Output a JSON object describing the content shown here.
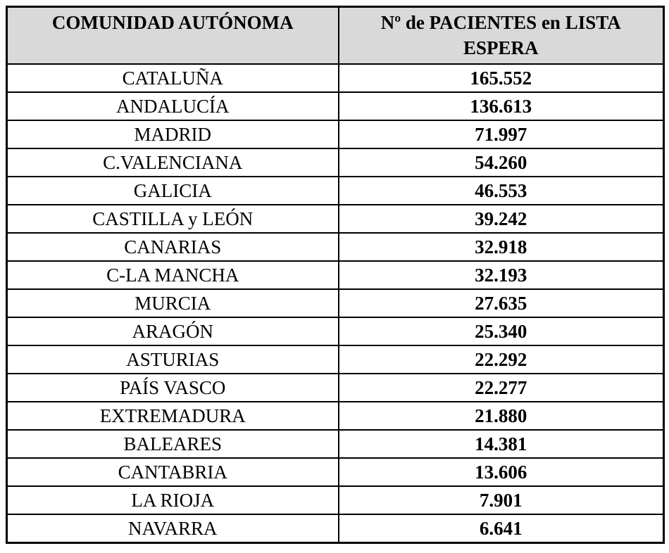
{
  "table": {
    "columns": [
      "COMUNIDAD AUTÓNOMA",
      "Nº de PACIENTES en LISTA ESPERA"
    ],
    "rows": [
      {
        "comunidad": "CATALUÑA",
        "pacientes": "165.552"
      },
      {
        "comunidad": "ANDALUCÍA",
        "pacientes": "136.613"
      },
      {
        "comunidad": "MADRID",
        "pacientes": "71.997"
      },
      {
        "comunidad": "C.VALENCIANA",
        "pacientes": "54.260"
      },
      {
        "comunidad": "GALICIA",
        "pacientes": "46.553"
      },
      {
        "comunidad": "CASTILLA y LEÓN",
        "pacientes": "39.242"
      },
      {
        "comunidad": "CANARIAS",
        "pacientes": "32.918"
      },
      {
        "comunidad": "C-LA MANCHA",
        "pacientes": "32.193"
      },
      {
        "comunidad": "MURCIA",
        "pacientes": "27.635"
      },
      {
        "comunidad": "ARAGÓN",
        "pacientes": "25.340"
      },
      {
        "comunidad": "ASTURIAS",
        "pacientes": "22.292"
      },
      {
        "comunidad": "PAÍS VASCO",
        "pacientes": "22.277"
      },
      {
        "comunidad": "EXTREMADURA",
        "pacientes": "21.880"
      },
      {
        "comunidad": "BALEARES",
        "pacientes": "14.381"
      },
      {
        "comunidad": "CANTABRIA",
        "pacientes": "13.606"
      },
      {
        "comunidad": "LA RIOJA",
        "pacientes": "7.901"
      },
      {
        "comunidad": "NAVARRA",
        "pacientes": "6.641"
      }
    ]
  },
  "colors": {
    "header_bg": "#d9d9d9",
    "border": "#000000",
    "cell_bg": "#ffffff",
    "text": "#000000"
  },
  "chart_data": {
    "type": "table",
    "title": "",
    "columns": [
      "COMUNIDAD AUTÓNOMA",
      "Nº de PACIENTES en LISTA ESPERA"
    ],
    "rows": [
      [
        "CATALUÑA",
        165552
      ],
      [
        "ANDALUCÍA",
        136613
      ],
      [
        "MADRID",
        71997
      ],
      [
        "C.VALENCIANA",
        54260
      ],
      [
        "GALICIA",
        46553
      ],
      [
        "CASTILLA y LEÓN",
        39242
      ],
      [
        "CANARIAS",
        32918
      ],
      [
        "C-LA MANCHA",
        32193
      ],
      [
        "MURCIA",
        27635
      ],
      [
        "ARAGÓN",
        25340
      ],
      [
        "ASTURIAS",
        22292
      ],
      [
        "PAÍS VASCO",
        22277
      ],
      [
        "EXTREMADURA",
        21880
      ],
      [
        "BALEARES",
        14381
      ],
      [
        "CANTABRIA",
        13606
      ],
      [
        "LA RIOJA",
        7901
      ],
      [
        "NAVARRA",
        6641
      ]
    ],
    "layout": {
      "header_background": "#d9d9d9",
      "grid": true,
      "value_format": "thousands separated by period"
    }
  }
}
